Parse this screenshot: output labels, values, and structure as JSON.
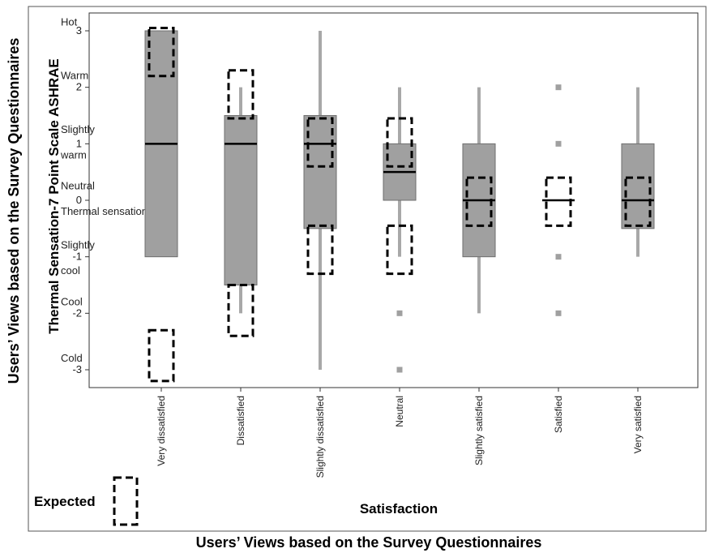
{
  "chart_data": {
    "type": "box",
    "title": "",
    "xlabel": "Satisfaction",
    "ylabel": "Thermal Sensation-7 Point Scale ASHRAE",
    "outer_xlabel": "Users’ Views based on the Survey Questionnaires",
    "outer_ylabel": "Users’ Views based on the Survey Questionnaires",
    "ylim": [
      -3.3,
      3.35
    ],
    "yticks": [
      "-3",
      "-2",
      "-1",
      "0",
      "1",
      "2",
      "3"
    ],
    "scale_labels": [
      {
        "text": "Hot",
        "value": 3.15
      },
      {
        "text": "Warm",
        "value": 2.2
      },
      {
        "text": "Slightly",
        "value": 1.25
      },
      {
        "text": "warm",
        "value": 0.8
      },
      {
        "text": "Neutral",
        "value": 0.25
      },
      {
        "text": "Thermal sensation",
        "value": -0.2
      },
      {
        "text": "Slightly",
        "value": -0.8
      },
      {
        "text": "cool",
        "value": -1.25
      },
      {
        "text": "Cool",
        "value": -1.8
      },
      {
        "text": "Cold",
        "value": -2.8
      }
    ],
    "categories": [
      "Very dissatisfied",
      "Dissatisfied",
      "Slightly dissatisfied",
      "Neutral",
      "Slightly satisfied",
      "Satisfied",
      "Very satisfied"
    ],
    "boxes": [
      {
        "category": "Very dissatisfied",
        "whisker_low": -1,
        "q1": -1,
        "median": 1,
        "q3": 3,
        "whisker_high": 3,
        "outliers": []
      },
      {
        "category": "Dissatisfied",
        "whisker_low": -2,
        "q1": -1.5,
        "median": 1,
        "q3": 1.5,
        "whisker_high": 2,
        "outliers": []
      },
      {
        "category": "Slightly dissatisfied",
        "whisker_low": -3,
        "q1": -0.5,
        "median": 1,
        "q3": 1.5,
        "whisker_high": 3,
        "outliers": []
      },
      {
        "category": "Neutral",
        "whisker_low": -1,
        "q1": 0,
        "median": 0.5,
        "q3": 1,
        "whisker_high": 2,
        "outliers": [
          -2,
          -3
        ]
      },
      {
        "category": "Slightly satisfied",
        "whisker_low": -2,
        "q1": -1,
        "median": 0,
        "q3": 1,
        "whisker_high": 2,
        "outliers": []
      },
      {
        "category": "Satisfied",
        "whisker_low": 0,
        "q1": 0,
        "median": 0,
        "q3": 0,
        "whisker_high": 0,
        "outliers": [
          2,
          1,
          -1,
          -2
        ]
      },
      {
        "category": "Very satisfied",
        "whisker_low": -1,
        "q1": -0.5,
        "median": 0,
        "q3": 1,
        "whisker_high": 2,
        "outliers": []
      }
    ],
    "expected_ranges": [
      {
        "category": "Very dissatisfied",
        "low": 2.2,
        "high": 3.05
      },
      {
        "category": "Very dissatisfied",
        "low": -3.2,
        "high": -2.3
      },
      {
        "category": "Dissatisfied",
        "low": 1.45,
        "high": 2.3
      },
      {
        "category": "Dissatisfied",
        "low": -2.4,
        "high": -1.5
      },
      {
        "category": "Slightly dissatisfied",
        "low": 0.6,
        "high": 1.45
      },
      {
        "category": "Slightly dissatisfied",
        "low": -1.3,
        "high": -0.45
      },
      {
        "category": "Neutral",
        "low": 0.6,
        "high": 1.45
      },
      {
        "category": "Neutral",
        "low": -1.3,
        "high": -0.45
      },
      {
        "category": "Slightly satisfied",
        "low": -0.45,
        "high": 0.4
      },
      {
        "category": "Satisfied",
        "low": -0.45,
        "high": 0.4
      },
      {
        "category": "Very satisfied",
        "low": -0.45,
        "high": 0.4
      }
    ],
    "legend": {
      "label": "Expected",
      "position": "bottom-left"
    },
    "colors": {
      "box_fill": "#a0a0a0",
      "whisker": "#a8a8a8",
      "median": "#000000",
      "outlier": "#a0a0a0",
      "expected_border": "#000000"
    },
    "grid": false
  }
}
